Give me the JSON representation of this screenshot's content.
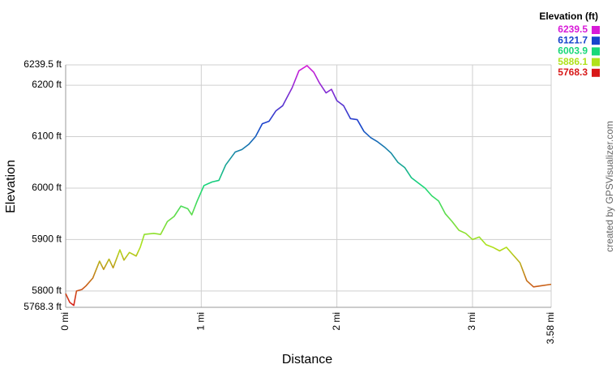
{
  "chart_data": {
    "type": "line",
    "x_label": "Distance",
    "y_label": "Elevation",
    "credit": "created by GPSVisualizer.com",
    "x": [
      0,
      0.03,
      0.06,
      0.08,
      0.12,
      0.15,
      0.2,
      0.25,
      0.28,
      0.32,
      0.35,
      0.4,
      0.43,
      0.47,
      0.52,
      0.55,
      0.58,
      0.65,
      0.7,
      0.75,
      0.8,
      0.85,
      0.9,
      0.93,
      0.97,
      1.02,
      1.08,
      1.13,
      1.18,
      1.25,
      1.3,
      1.35,
      1.4,
      1.45,
      1.5,
      1.55,
      1.6,
      1.63,
      1.67,
      1.72,
      1.78,
      1.83,
      1.87,
      1.92,
      1.96,
      2.0,
      2.05,
      2.1,
      2.15,
      2.2,
      2.25,
      2.3,
      2.35,
      2.4,
      2.45,
      2.5,
      2.55,
      2.6,
      2.65,
      2.7,
      2.75,
      2.8,
      2.85,
      2.9,
      2.95,
      3.0,
      3.05,
      3.1,
      3.15,
      3.2,
      3.25,
      3.3,
      3.35,
      3.4,
      3.45,
      3.5,
      3.58
    ],
    "values": [
      5795,
      5778,
      5772,
      5800,
      5803,
      5810,
      5825,
      5858,
      5842,
      5862,
      5845,
      5880,
      5860,
      5875,
      5868,
      5885,
      5910,
      5912,
      5910,
      5935,
      5945,
      5965,
      5960,
      5948,
      5975,
      6005,
      6012,
      6015,
      6045,
      6070,
      6075,
      6085,
      6100,
      6125,
      6130,
      6150,
      6160,
      6175,
      6195,
      6228,
      6238,
      6225,
      6205,
      6185,
      6192,
      6170,
      6160,
      6135,
      6133,
      6110,
      6098,
      6090,
      6080,
      6068,
      6050,
      6040,
      6020,
      6010,
      6000,
      5985,
      5975,
      5950,
      5935,
      5918,
      5912,
      5900,
      5905,
      5890,
      5885,
      5878,
      5885,
      5870,
      5855,
      5820,
      5808,
      5810,
      5813
    ],
    "xlim": [
      0,
      3.58
    ],
    "xticks": [
      {
        "value": 0,
        "label": "0 mi"
      },
      {
        "value": 1,
        "label": "1 mi"
      },
      {
        "value": 2,
        "label": "2 mi"
      },
      {
        "value": 3,
        "label": "3 mi"
      },
      {
        "value": 3.58,
        "label": "3.58 mi"
      }
    ],
    "ylim": [
      5768.3,
      6239.5
    ],
    "yticks": [
      {
        "value": 5768.3,
        "label": "5768.3 ft"
      },
      {
        "value": 5800,
        "label": "5800 ft"
      },
      {
        "value": 5900,
        "label": "5900 ft"
      },
      {
        "value": 6000,
        "label": "6000 ft"
      },
      {
        "value": 6100,
        "label": "6100 ft"
      },
      {
        "value": 6200,
        "label": "6200 ft"
      },
      {
        "value": 6239.5,
        "label": "6239.5 ft"
      }
    ],
    "grid": true,
    "legend": {
      "title": "Elevation (ft)",
      "position": "top-right",
      "items": [
        {
          "value": 6239.5,
          "color": "#d81ad8"
        },
        {
          "value": 6121.7,
          "color": "#1644cc"
        },
        {
          "value": 6003.9,
          "color": "#18d878"
        },
        {
          "value": 5886.1,
          "color": "#b0e21a"
        },
        {
          "value": 5768.3,
          "color": "#d81818"
        }
      ]
    }
  }
}
